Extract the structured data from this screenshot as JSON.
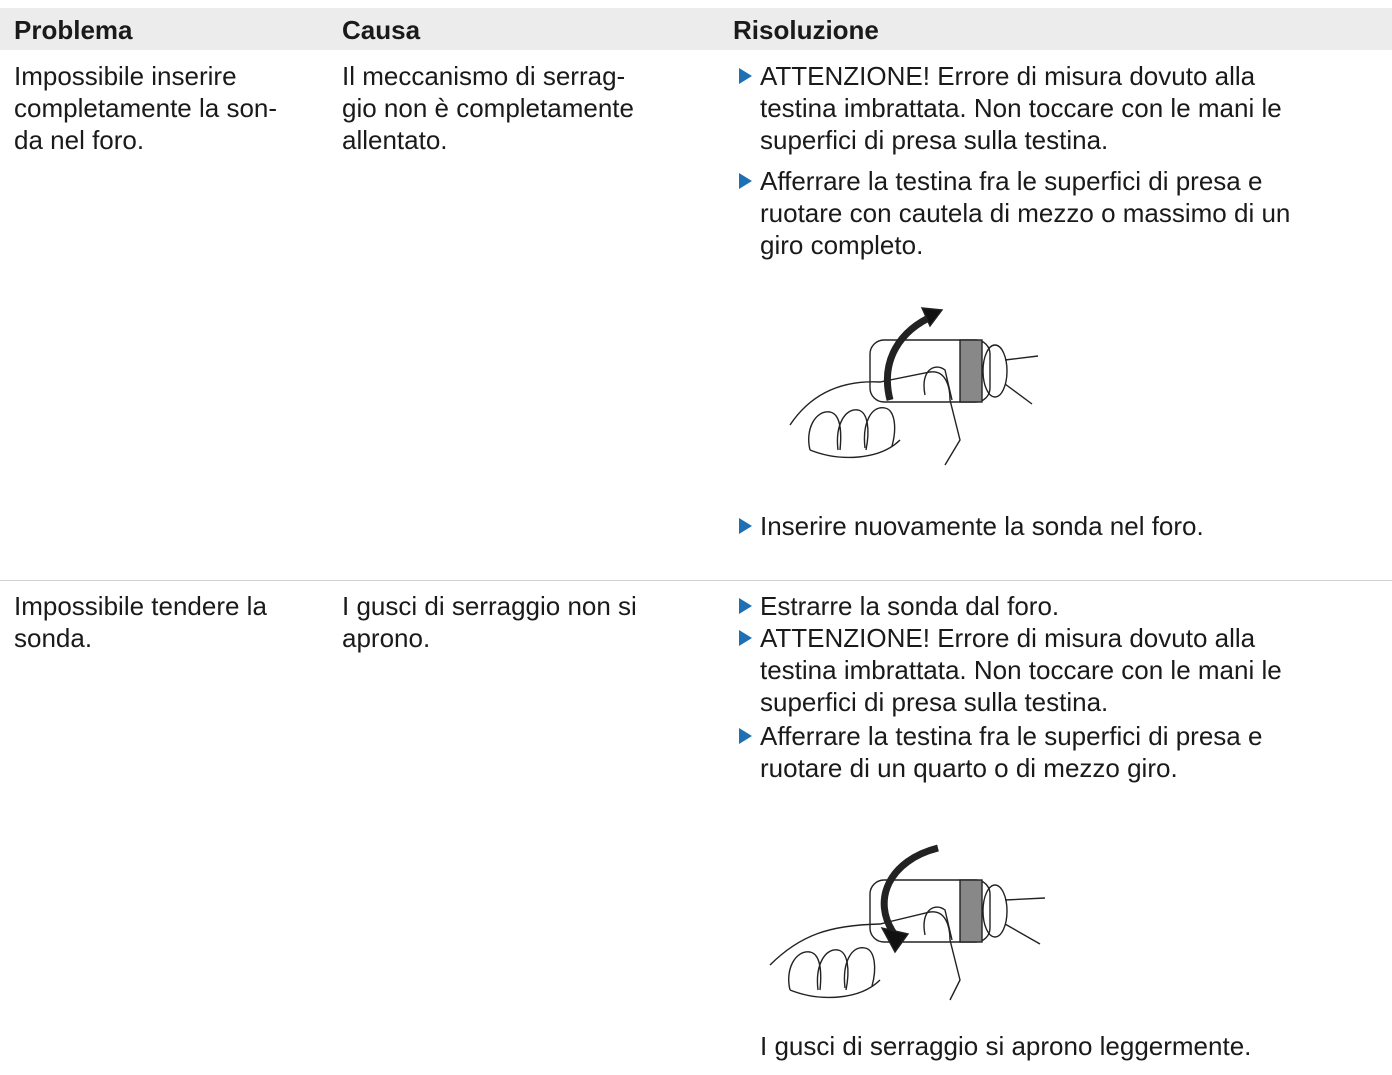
{
  "table": {
    "header": [
      "Problema",
      "Causa",
      "Risoluzione"
    ],
    "rows": [
      {
        "problem": [
          "Impossibile inserire",
          "completamente la son-",
          "da nel foro."
        ],
        "cause": [
          "Il meccanismo di serrag-",
          "gio non è completamente",
          "allentato."
        ],
        "steps": [
          [
            "ATTENZIONE! Errore di misura dovuto alla",
            "testina imbrattata. Non toccare con le mani le",
            "superfici di presa sulla testina."
          ],
          [
            "Afferrare la testina fra le superfici di presa e",
            "ruotare con cautela di mezzo o massimo di un",
            "giro completo."
          ],
          [
            "Inserire nuovamente la sonda nel foro."
          ]
        ]
      },
      {
        "problem": [
          "Impossibile tendere la",
          "sonda."
        ],
        "cause": [
          "I gusci di serraggio non si",
          "aprono."
        ],
        "steps": [
          [
            "Estrarre la sonda dal foro."
          ],
          [
            "ATTENZIONE! Errore di misura dovuto alla",
            "testina imbrattata. Non toccare con le mani le",
            "superfici di presa sulla testina."
          ],
          [
            "Afferrare la testina fra le superfici di presa e",
            "ruotare di un quarto o di mezzo giro."
          ]
        ],
        "result": "I gusci di serraggio si aprono leggermente."
      }
    ]
  }
}
